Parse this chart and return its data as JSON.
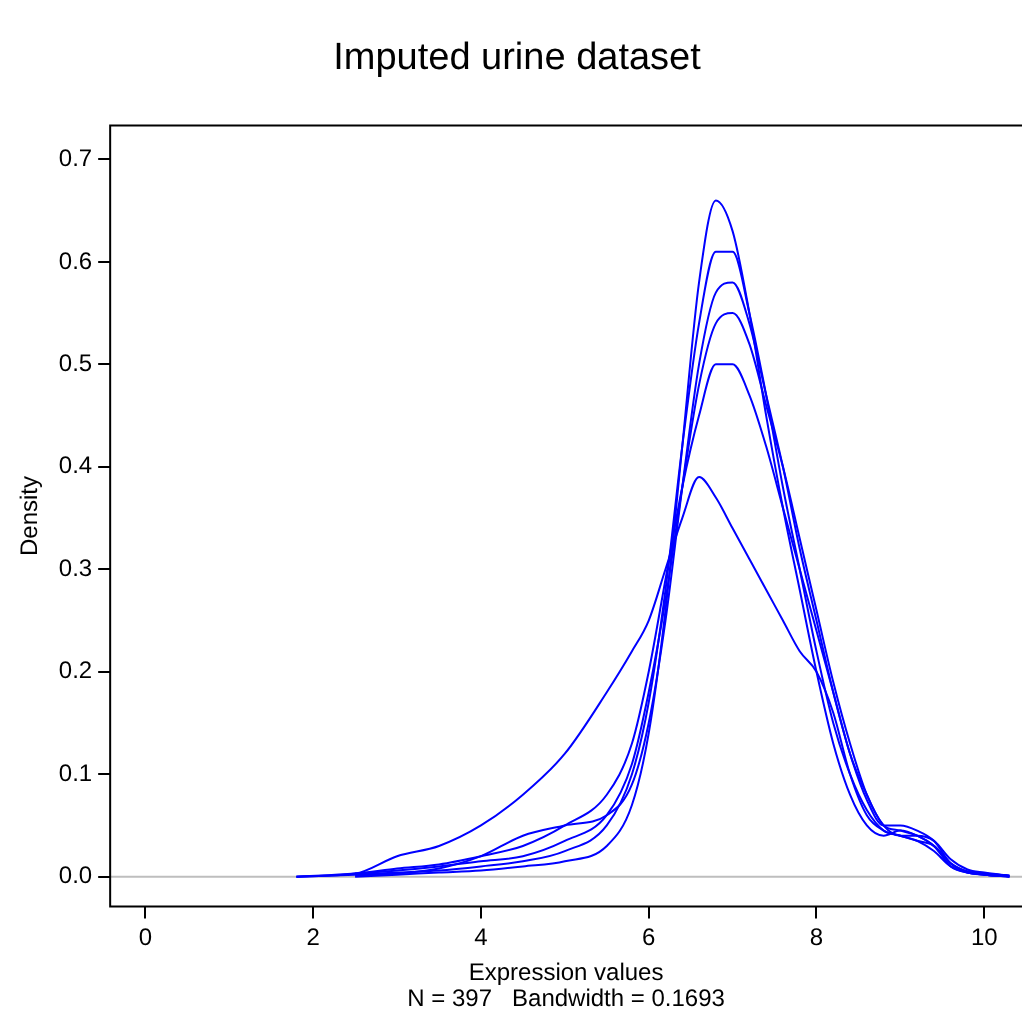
{
  "chart_data": {
    "type": "line",
    "title": "Imputed urine dataset",
    "xlabel": "Expression values",
    "ylabel": "Density",
    "annotations": [
      "N = 397   Bandwidth = 0.1693"
    ],
    "x": [
      1.8,
      2.5,
      3,
      3.5,
      4,
      4.5,
      5,
      5.5,
      5.8,
      6,
      6.2,
      6.4,
      6.6,
      6.8,
      7,
      7.2,
      7.4,
      7.6,
      7.8,
      8,
      8.2,
      8.4,
      8.6,
      8.8,
      9,
      9.2,
      9.4,
      9.6,
      9.8,
      10,
      10.3
    ],
    "series": [
      {
        "color": "#0000ff",
        "values": [
          0,
          0.002,
          0.004,
          0.006,
          0.01,
          0.015,
          0.025,
          0.05,
          0.1,
          0.17,
          0.28,
          0.42,
          0.54,
          0.61,
          0.61,
          0.55,
          0.47,
          0.38,
          0.3,
          0.22,
          0.15,
          0.1,
          0.065,
          0.045,
          0.04,
          0.035,
          0.03,
          0.013,
          0.005,
          0.003,
          0.001
        ]
      },
      {
        "color": "#0000ff",
        "values": [
          null,
          0,
          0.002,
          0.004,
          0.006,
          0.01,
          0.015,
          0.03,
          0.07,
          0.14,
          0.26,
          0.42,
          0.58,
          0.66,
          0.63,
          0.55,
          0.45,
          0.36,
          0.28,
          0.2,
          0.13,
          0.08,
          0.05,
          0.04,
          0.045,
          0.04,
          0.03,
          0.01,
          0.004,
          0.002,
          0
        ]
      },
      {
        "color": "#0000ff",
        "values": [
          null,
          0.003,
          0.006,
          0.01,
          0.015,
          0.02,
          0.035,
          0.06,
          0.11,
          0.18,
          0.27,
          0.38,
          0.48,
          0.54,
          0.55,
          0.52,
          0.46,
          0.4,
          0.33,
          0.26,
          0.19,
          0.13,
          0.08,
          0.05,
          0.04,
          0.04,
          0.035,
          0.017,
          0.007,
          0.004,
          0.001
        ]
      },
      {
        "color": "#0000ff",
        "values": [
          0,
          0.003,
          0.008,
          0.012,
          0.02,
          0.03,
          0.05,
          0.08,
          0.13,
          0.2,
          0.29,
          0.38,
          0.45,
          0.5,
          0.5,
          0.47,
          0.42,
          0.36,
          0.3,
          0.24,
          0.18,
          0.12,
          0.08,
          0.05,
          0.045,
          0.04,
          0.03,
          0.013,
          0.005,
          0.003,
          0.001
        ]
      },
      {
        "color": "#0000ff",
        "values": [
          null,
          0.001,
          0.003,
          0.008,
          0.02,
          0.04,
          0.05,
          0.06,
          0.09,
          0.15,
          0.25,
          0.38,
          0.5,
          0.57,
          0.58,
          0.54,
          0.47,
          0.4,
          0.32,
          0.25,
          0.18,
          0.12,
          0.075,
          0.05,
          0.05,
          0.045,
          0.035,
          0.013,
          0.004,
          0.002,
          0
        ]
      },
      {
        "color": "#0000ff",
        "values": [
          0,
          0.003,
          0.02,
          0.03,
          0.05,
          0.08,
          0.12,
          0.18,
          0.22,
          0.25,
          0.3,
          0.35,
          0.39,
          0.37,
          0.34,
          0.31,
          0.28,
          0.25,
          0.22,
          0.2,
          0.16,
          0.1,
          0.06,
          0.045,
          0.04,
          0.035,
          0.025,
          0.01,
          0.004,
          0.002,
          0
        ]
      }
    ],
    "xlim": [
      -0.42,
      10.45
    ],
    "xticks": [
      0,
      2,
      4,
      6,
      8,
      10
    ],
    "ylim": [
      -0.029,
      0.733
    ],
    "yticks": [
      {
        "value": 0,
        "label": "0.0"
      },
      {
        "value": 0.1,
        "label": "0.1"
      },
      {
        "value": 0.2,
        "label": "0.2"
      },
      {
        "value": 0.3,
        "label": "0.3"
      },
      {
        "value": 0.4,
        "label": "0.4"
      },
      {
        "value": 0.5,
        "label": "0.5"
      },
      {
        "value": 0.6,
        "label": "0.6"
      },
      {
        "value": 0.7,
        "label": "0.7"
      }
    ],
    "ref_lines": [
      {
        "axis": "y",
        "value": 0,
        "color": "#bebebe"
      }
    ],
    "grid": false,
    "legend": false,
    "marker": "none",
    "line_style": "solid"
  }
}
